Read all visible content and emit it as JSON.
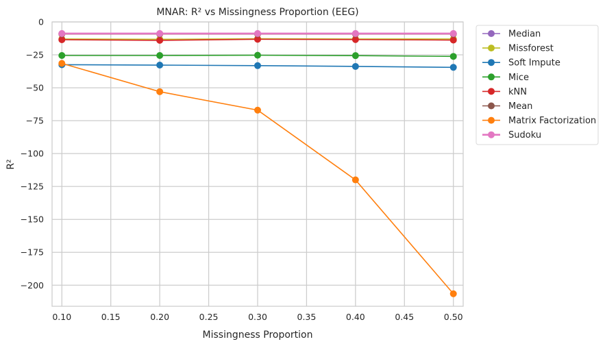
{
  "chart_data": {
    "type": "line",
    "title": "MNAR: R² vs Missingness Proportion (EEG)",
    "xlabel": "Missingness Proportion",
    "ylabel": "R²",
    "xlim": [
      0.09,
      0.51
    ],
    "ylim": [
      -216,
      0
    ],
    "xticks": [
      0.1,
      0.15,
      0.2,
      0.25,
      0.3,
      0.35,
      0.4,
      0.45,
      0.5
    ],
    "xtick_labels": [
      "0.10",
      "0.15",
      "0.20",
      "0.25",
      "0.30",
      "0.35",
      "0.40",
      "0.45",
      "0.50"
    ],
    "yticks": [
      0,
      -25,
      -50,
      -75,
      -100,
      -125,
      -150,
      -175,
      -200
    ],
    "ytick_labels": [
      "0",
      "−25",
      "−50",
      "−75",
      "−100",
      "−125",
      "−150",
      "−175",
      "−200"
    ],
    "grid": true,
    "legend_position": "outside-right-top",
    "x": [
      0.1,
      0.2,
      0.3,
      0.4,
      0.5
    ],
    "series": [
      {
        "name": "Median",
        "color": "#9467bd",
        "values": [
          -9.0,
          -9.0,
          -9.0,
          -9.0,
          -9.0
        ]
      },
      {
        "name": "Missforest",
        "color": "#bcbd22",
        "values": [
          -13.0,
          -13.2,
          -12.8,
          -13.0,
          -13.0
        ]
      },
      {
        "name": "Soft Impute",
        "color": "#1f77b4",
        "values": [
          -32.5,
          -32.8,
          -33.2,
          -33.8,
          -34.5
        ]
      },
      {
        "name": "Mice",
        "color": "#2ca02c",
        "values": [
          -25.5,
          -25.5,
          -25.3,
          -25.6,
          -26.2
        ]
      },
      {
        "name": "kNN",
        "color": "#d62728",
        "values": [
          -13.5,
          -14.0,
          -13.2,
          -13.4,
          -13.8
        ]
      },
      {
        "name": "Mean",
        "color": "#8c564b",
        "values": [
          -9.2,
          -9.2,
          -9.2,
          -9.2,
          -9.2
        ]
      },
      {
        "name": "Matrix Factorization",
        "color": "#ff7f0e",
        "values": [
          -31.5,
          -53.0,
          -67.0,
          -120.0,
          -206.5
        ]
      },
      {
        "name": "Sudoku",
        "color": "#e377c2",
        "values": [
          -8.8,
          -8.8,
          -8.8,
          -8.8,
          -8.8
        ]
      }
    ]
  }
}
